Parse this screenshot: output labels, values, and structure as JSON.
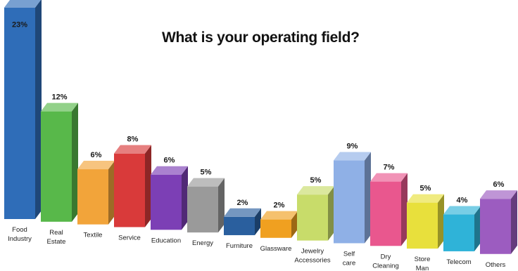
{
  "chart_data": {
    "type": "bar",
    "title": "What is your operating field?",
    "xlabel": "",
    "ylabel": "",
    "value_suffix": "%",
    "categories": [
      [
        "Food",
        "Industry"
      ],
      [
        "Real",
        "Estate"
      ],
      [
        "Textile"
      ],
      [
        "Service"
      ],
      [
        "Education"
      ],
      [
        "Energy"
      ],
      [
        "Furniture"
      ],
      [
        "Glassware"
      ],
      [
        "Jewelry",
        "Accessories"
      ],
      [
        "Self",
        "care"
      ],
      [
        "Dry",
        "Cleaning"
      ],
      [
        "Store",
        "Man"
      ],
      [
        "Telecom"
      ],
      [
        "Others"
      ]
    ],
    "values": [
      23,
      12,
      6,
      8,
      6,
      5,
      2,
      2,
      5,
      9,
      7,
      5,
      4,
      6
    ],
    "colors": [
      "#2f6db8",
      "#58b84a",
      "#f2a43a",
      "#d93a3a",
      "#7c3fb5",
      "#9a9a9a",
      "#2a5f9e",
      "#f0a020",
      "#c8dc6a",
      "#8fb0e6",
      "#e9578e",
      "#e8e03c",
      "#2fb3d8",
      "#9c5cc0"
    ],
    "grid": false,
    "legend": "none"
  }
}
